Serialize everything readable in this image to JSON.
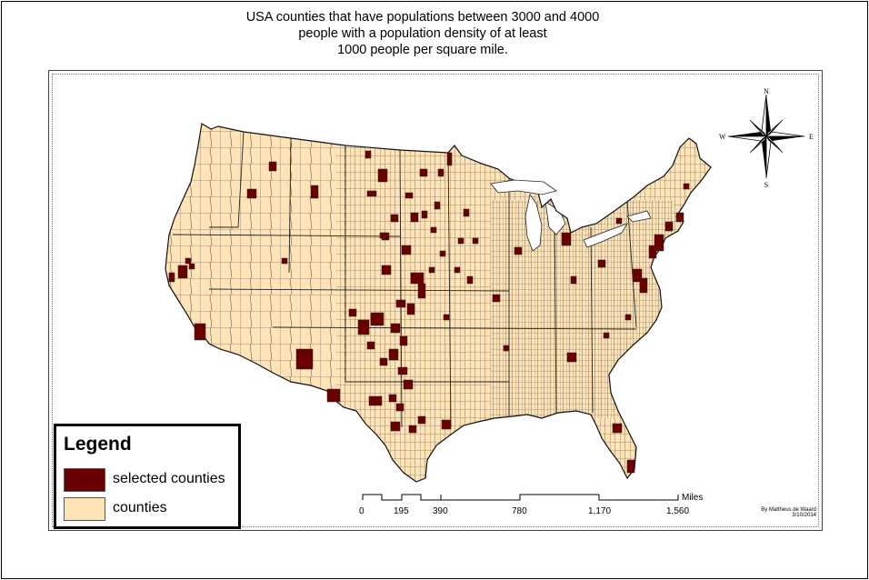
{
  "title_lines": [
    "USA counties that have populations between 3000 and 4000",
    "people with a population density of at least",
    "1000 people per square mile."
  ],
  "compass": {
    "n": "N",
    "e": "E",
    "s": "S",
    "w": "W"
  },
  "legend": {
    "title": "Legend",
    "items": [
      {
        "label": "selected counties",
        "color": "#6b0000"
      },
      {
        "label": "counties",
        "color": "#fde3b5"
      }
    ]
  },
  "scale_bar": {
    "unit": "Miles",
    "ticks": [
      "0",
      "195",
      "390",
      "780",
      "1,170",
      "1,560"
    ]
  },
  "credit": {
    "author": "By Mattheus de Waard",
    "date": "3/10/2014"
  },
  "colors": {
    "county_fill": "#fde3b5",
    "selected_fill": "#6b0000",
    "county_border": "#222222",
    "background": "#ffffff"
  }
}
